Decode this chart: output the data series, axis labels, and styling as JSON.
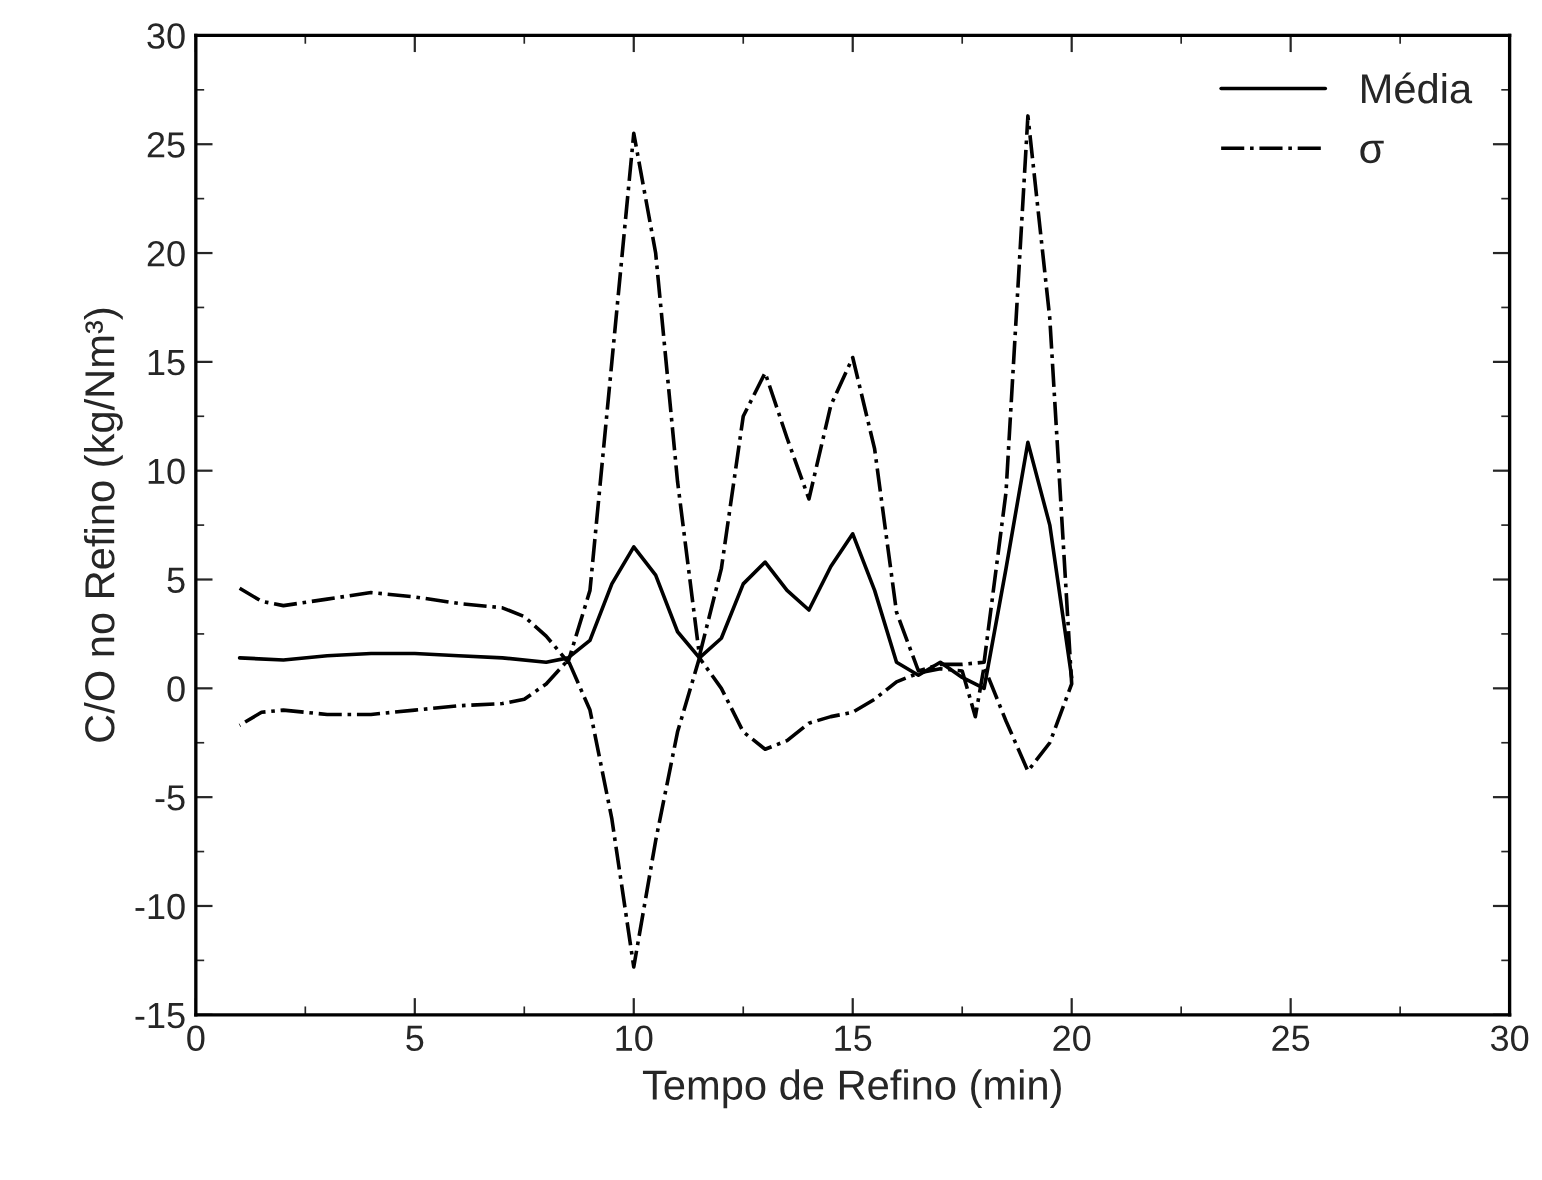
{
  "chart_data": {
    "type": "line",
    "xlabel": "Tempo de Refino (min)",
    "ylabel": "C/O no Refino (kg/Nm³)",
    "xlim": [
      0,
      30
    ],
    "xticks": [
      0,
      5,
      10,
      15,
      20,
      25,
      30
    ],
    "ylim": [
      -15,
      30
    ],
    "yticks": [
      -15,
      -10,
      -5,
      0,
      5,
      10,
      15,
      20,
      25,
      30
    ],
    "legend": "top right",
    "grid": false,
    "series": [
      {
        "name": "Média",
        "color": "#000000",
        "line_style": "solid",
        "x": [
          1,
          2,
          3,
          4,
          5,
          6,
          7,
          8,
          8.5,
          9,
          9.5,
          10,
          10.5,
          11,
          11.5,
          12,
          12.5,
          13,
          13.5,
          14,
          14.5,
          15,
          15.5,
          16,
          16.5,
          17,
          17.5,
          18,
          18.5,
          19,
          19.5,
          20
        ],
        "values": [
          1.4,
          1.3,
          1.5,
          1.6,
          1.6,
          1.5,
          1.4,
          1.2,
          1.4,
          2.2,
          4.8,
          6.5,
          5.2,
          2.6,
          1.4,
          2.3,
          4.8,
          5.8,
          4.5,
          3.6,
          5.6,
          7.1,
          4.5,
          1.2,
          0.6,
          1.2,
          0.5,
          0.0,
          5.5,
          11.3,
          7.5,
          0.5
        ]
      },
      {
        "name": "σ",
        "color": "#000000",
        "line_style": "dashdot",
        "x": [
          1,
          1.5,
          2,
          3,
          4,
          5,
          6,
          7,
          7.5,
          8,
          8.5,
          9,
          9.5,
          10,
          10.5,
          11,
          11.5,
          12,
          12.5,
          13,
          13.5,
          14,
          14.5,
          15,
          15.5,
          16,
          16.5,
          17,
          17.5,
          18,
          18.5,
          19,
          19.5,
          20,
          19.5,
          19,
          18.5,
          18,
          17.8,
          17.5,
          17,
          16.5,
          16,
          15.5,
          15,
          14.5,
          14,
          13.5,
          13,
          12.5,
          12,
          11.5,
          11,
          10.5,
          10,
          9.5,
          9,
          8.5,
          8,
          7.5,
          7,
          6,
          5,
          4,
          3,
          2,
          1.5,
          1
        ],
        "values": [
          4.6,
          4.0,
          3.8,
          4.1,
          4.4,
          4.2,
          3.9,
          3.7,
          3.3,
          2.4,
          1.2,
          4.5,
          15,
          25.5,
          20,
          9.5,
          1.5,
          5.5,
          12.5,
          14.5,
          11.5,
          8.7,
          13,
          15.2,
          11,
          3.5,
          0.8,
          1.1,
          1.1,
          1.2,
          9,
          26.3,
          17,
          0.2,
          -2.5,
          -3.8,
          -1.5,
          1.0,
          -1.3,
          0.8,
          0.9,
          0.7,
          0.3,
          -0.5,
          -1.1,
          -1.3,
          -1.6,
          -2.4,
          -2.8,
          -2.0,
          0.0,
          1.4,
          -2.0,
          -7,
          -12.8,
          -6,
          -1.0,
          1.3,
          0.2,
          -0.5,
          -0.7,
          -0.8,
          -1.0,
          -1.2,
          -1.2,
          -1.0,
          -1.1,
          -1.7
        ]
      }
    ]
  }
}
